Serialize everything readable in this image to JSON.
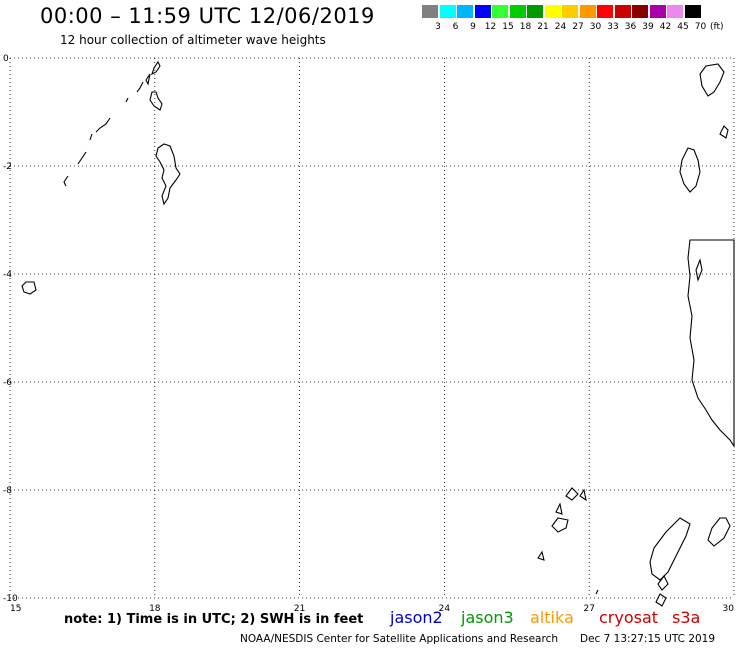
{
  "header": {
    "title": "00:00 – 11:59 UTC 12/06/2019",
    "subtitle": "12 hour collection of altimeter wave heights"
  },
  "scale": {
    "colors": [
      "#808080",
      "#00ffff",
      "#00b4ff",
      "#0000ff",
      "#33ff33",
      "#00cc00",
      "#009900",
      "#ffff00",
      "#ffcc00",
      "#ff9900",
      "#ff0000",
      "#cc0000",
      "#880000",
      "#aa00aa",
      "#ee88ee",
      "#000000"
    ],
    "labels": [
      "3",
      "6",
      "9",
      "12",
      "15",
      "18",
      "21",
      "24",
      "27",
      "30",
      "33",
      "36",
      "39",
      "42",
      "45",
      "70"
    ],
    "unit": "(ft)"
  },
  "map": {
    "x_ticks": [
      "15",
      "18",
      "21",
      "24",
      "27",
      "30"
    ],
    "x_values": [
      15,
      18,
      21,
      24,
      27,
      30
    ],
    "y_ticks": [
      "0",
      "-2",
      "-4",
      "-6",
      "-8",
      "-10"
    ],
    "y_values": [
      0,
      -2,
      -4,
      -6,
      -8,
      -10
    ],
    "x_range": [
      15,
      30
    ],
    "y_range": [
      -10,
      0
    ],
    "grid": true
  },
  "footer": {
    "note": "note: 1) Time is in UTC; 2) SWH is in feet",
    "satellites": [
      {
        "name": "jason2",
        "color": "#0000cc"
      },
      {
        "name": "jason3",
        "color": "#009900"
      },
      {
        "name": "altika",
        "color": "#ff9900"
      },
      {
        "name": "cryosat",
        "color": "#cc0000"
      },
      {
        "name": "s3a",
        "color": "#cc0000"
      }
    ],
    "credit": "NOAA/NESDIS Center for Satellite Applications and Research",
    "timestamp": "Dec  7 13:27:15 UTC 2019"
  }
}
